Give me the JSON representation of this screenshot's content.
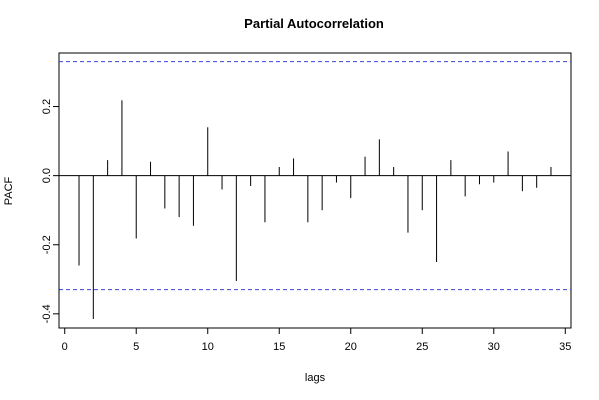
{
  "chart_data": {
    "type": "bar",
    "title": "Partial Autocorrelation",
    "xlabel": "lags",
    "ylabel": "PACF",
    "xlim": [
      -0.4,
      35.4
    ],
    "ylim": [
      -0.441,
      0.355
    ],
    "x_ticks": [
      0,
      5,
      10,
      15,
      20,
      25,
      30,
      35
    ],
    "y_ticks": [
      -0.4,
      -0.2,
      0.0,
      0.2
    ],
    "confidence_band": [
      0.33,
      -0.33
    ],
    "grid": false,
    "legend": "none",
    "colors": {
      "bars": "#000000",
      "confidence": "#3c46d2",
      "zero_line": "#000000",
      "frame": "#000000"
    },
    "series": [
      {
        "x": [
          1,
          2,
          3,
          4,
          5,
          6,
          7,
          8,
          9,
          10,
          11,
          12,
          13,
          14,
          15,
          16,
          17,
          18,
          19,
          20,
          21,
          22,
          23,
          24,
          25,
          26,
          27,
          28,
          29,
          30,
          31,
          32,
          33,
          34
        ],
        "values": [
          -0.26,
          -0.415,
          0.045,
          0.218,
          -0.182,
          0.04,
          -0.095,
          -0.12,
          -0.145,
          0.14,
          -0.04,
          -0.305,
          -0.03,
          -0.135,
          0.025,
          0.05,
          -0.135,
          -0.1,
          -0.02,
          -0.065,
          0.055,
          0.105,
          0.025,
          -0.165,
          -0.1,
          -0.25,
          0.045,
          -0.06,
          -0.025,
          -0.02,
          0.07,
          -0.045,
          -0.035,
          0.025
        ]
      }
    ]
  }
}
